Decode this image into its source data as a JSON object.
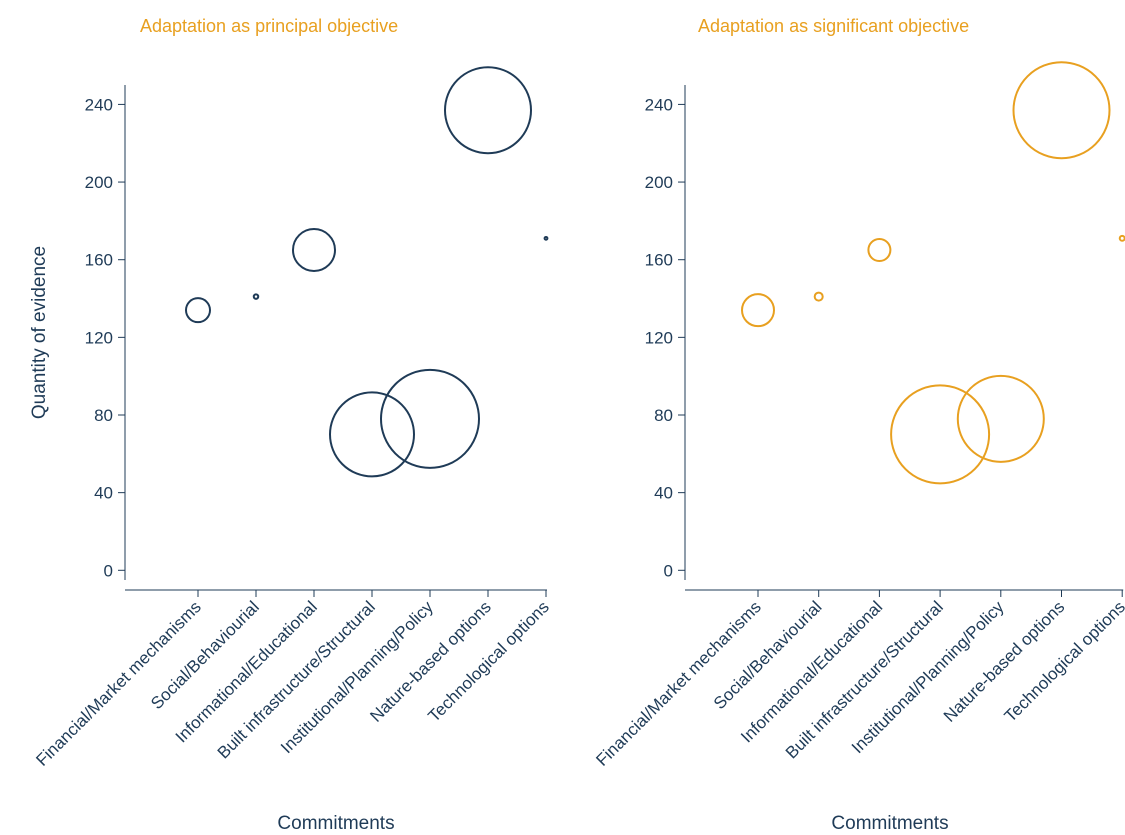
{
  "chart_data": [
    {
      "type": "bubble",
      "title": "Adaptation as principal objective",
      "xlabel": "Commitments",
      "ylabel": "Quantity of evidence",
      "categories": [
        "Financial/Market mechanisms",
        "Social/Behaviourial",
        "Informational/Educational",
        "Built infrastructure/Structural",
        "Institutional/Planning/Policy",
        "Nature-based options",
        "Technological options"
      ],
      "values": [
        134,
        141,
        165,
        70,
        78,
        237,
        171
      ],
      "sizes": [
        144,
        5,
        441,
        1764,
        2401,
        1849,
        2
      ],
      "color": "#1f3b57",
      "title_color": "#e8a020",
      "ylim": [
        -5,
        250
      ],
      "yticks": [
        0,
        40,
        80,
        120,
        160,
        200,
        240
      ]
    },
    {
      "type": "bubble",
      "title": "Adaptation as significant objective",
      "xlabel": "Commitments",
      "categories": [
        "Financial/Market mechanisms",
        "Social/Behaviourial",
        "Informational/Educational",
        "Built infrastructure/Structural",
        "Institutional/Planning/Policy",
        "Nature-based options",
        "Technological options"
      ],
      "values": [
        134,
        141,
        165,
        70,
        78,
        237,
        171
      ],
      "sizes": [
        256,
        16,
        121,
        2401,
        1849,
        2304,
        6
      ],
      "color": "#e8a020",
      "title_color": "#e8a020",
      "ylim": [
        -5,
        250
      ],
      "yticks": [
        0,
        40,
        80,
        120,
        160,
        200,
        240
      ]
    }
  ]
}
